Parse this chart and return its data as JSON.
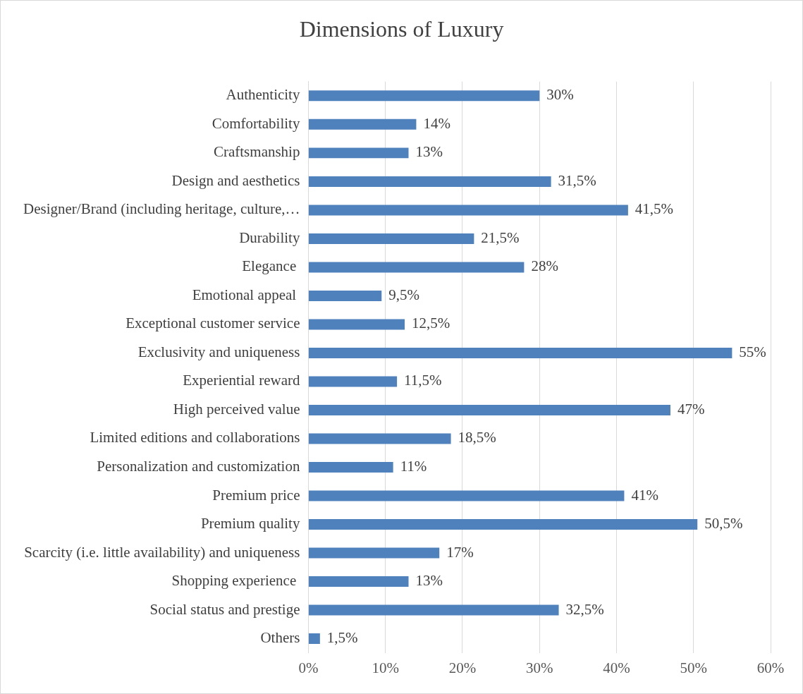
{
  "chart_data": {
    "type": "bar",
    "orientation": "horizontal",
    "title": "Dimensions of Luxury",
    "categories": [
      "Authenticity",
      "Comfortability",
      "Craftsmanship",
      "Design and aesthetics",
      "Designer/Brand (including heritage, culture,…",
      "Durability",
      "Elegance ",
      "Emotional appeal ",
      "Exceptional customer service",
      "Exclusivity and uniqueness",
      "Experiential reward",
      "High perceived value",
      "Limited editions and collaborations",
      "Personalization and customization",
      "Premium price",
      "Premium quality",
      "Scarcity (i.e. little availability) and uniqueness",
      "Shopping experience ",
      "Social status and prestige",
      "Others"
    ],
    "values": [
      30,
      14,
      13,
      31.5,
      41.5,
      21.5,
      28,
      9.5,
      12.5,
      55,
      11.5,
      47,
      18.5,
      11,
      41,
      50.5,
      17,
      13,
      32.5,
      1.5
    ],
    "value_labels": [
      "30%",
      "14%",
      "13%",
      "31,5%",
      "41,5%",
      "21,5%",
      "28%",
      "9,5%",
      "12,5%",
      "55%",
      "11,5%",
      "47%",
      "18,5%",
      "11%",
      "41%",
      "50,5%",
      "17%",
      "13%",
      "32,5%",
      "1,5%"
    ],
    "color": "#4f81bd",
    "xlim": [
      0,
      60
    ],
    "xticks": [
      {
        "value": 0,
        "label": "0%"
      },
      {
        "value": 10,
        "label": "10%"
      },
      {
        "value": 20,
        "label": "20%"
      },
      {
        "value": 30,
        "label": "30%"
      },
      {
        "value": 40,
        "label": "40%"
      },
      {
        "value": 50,
        "label": "50%"
      },
      {
        "value": 60,
        "label": "60%"
      }
    ],
    "grid": "x"
  }
}
